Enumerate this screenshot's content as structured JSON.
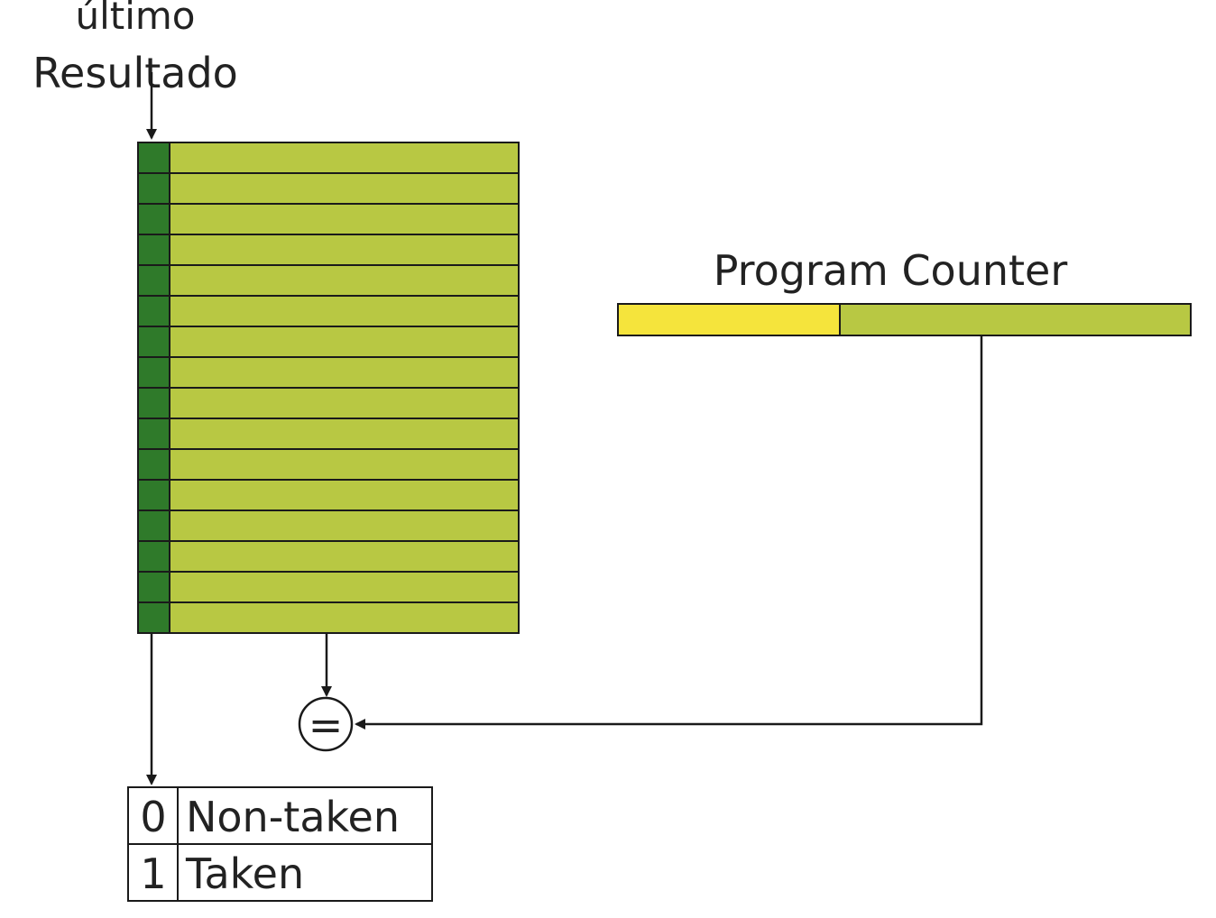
{
  "labels": {
    "top_partial": "último",
    "top_label": "Resultado",
    "pc_label": "Program Counter",
    "compare_symbol": "="
  },
  "table": {
    "rows": 16
  },
  "legend": {
    "rows": [
      {
        "bit": "0",
        "meaning": "Non-taken"
      },
      {
        "bit": "1",
        "meaning": "Taken"
      }
    ]
  },
  "colors": {
    "table_fill": "#b8c843",
    "bit_column_fill": "#2f7a2a",
    "pc_low_fill": "#f5e43c",
    "pc_high_fill": "#b8c843",
    "line": "#1a1a1a"
  }
}
